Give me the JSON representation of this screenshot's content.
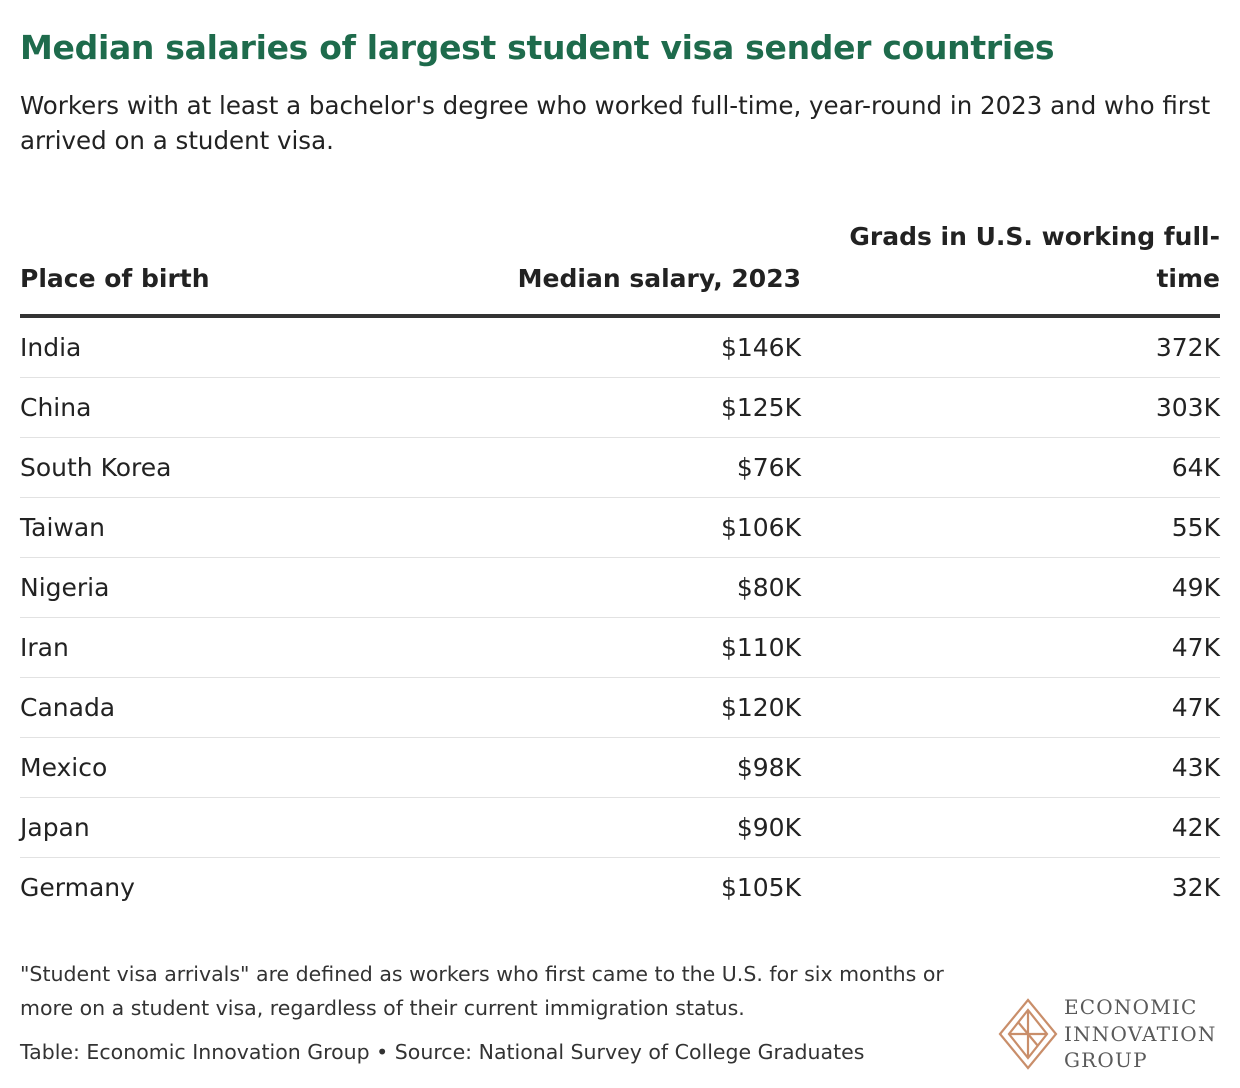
{
  "title": "Median salaries of largest student visa sender countries",
  "subtitle": "Workers with at least a bachelor's degree who worked full-time, year-round in 2023 and who first arrived on a student visa.",
  "table": {
    "headers": {
      "place": "Place of birth",
      "salary": "Median salary, 2023",
      "grads": "Grads in U.S. working full-time"
    },
    "rows": [
      {
        "place": "India",
        "salary": "$146K",
        "grads": "372K"
      },
      {
        "place": "China",
        "salary": "$125K",
        "grads": "303K"
      },
      {
        "place": "South Korea",
        "salary": "$76K",
        "grads": "64K"
      },
      {
        "place": "Taiwan",
        "salary": "$106K",
        "grads": "55K"
      },
      {
        "place": "Nigeria",
        "salary": "$80K",
        "grads": "49K"
      },
      {
        "place": "Iran",
        "salary": "$110K",
        "grads": "47K"
      },
      {
        "place": "Canada",
        "salary": "$120K",
        "grads": "47K"
      },
      {
        "place": "Mexico",
        "salary": "$98K",
        "grads": "43K"
      },
      {
        "place": "Japan",
        "salary": "$90K",
        "grads": "42K"
      },
      {
        "place": "Germany",
        "salary": "$105K",
        "grads": "32K"
      }
    ]
  },
  "chart_data": {
    "type": "table",
    "title": "Median salaries of largest student visa sender countries",
    "columns": [
      "Place of birth",
      "Median salary, 2023",
      "Grads in U.S. working full-time"
    ],
    "rows": [
      [
        "India",
        "$146K",
        "372K"
      ],
      [
        "China",
        "$125K",
        "303K"
      ],
      [
        "South Korea",
        "$76K",
        "64K"
      ],
      [
        "Taiwan",
        "$106K",
        "55K"
      ],
      [
        "Nigeria",
        "$80K",
        "49K"
      ],
      [
        "Iran",
        "$110K",
        "47K"
      ],
      [
        "Canada",
        "$120K",
        "47K"
      ],
      [
        "Mexico",
        "$98K",
        "43K"
      ],
      [
        "Japan",
        "$90K",
        "42K"
      ],
      [
        "Germany",
        "$105K",
        "32K"
      ]
    ]
  },
  "footer": {
    "note": "\"Student visa arrivals\" are defined as workers who first came to the U.S. for six months or more on a student visa, regardless of their current immigration status.",
    "source": "Table: Economic Innovation Group • Source: National Survey of College Graduates"
  },
  "logo": {
    "lines": [
      "ECONOMIC",
      "INNOVATION",
      "GROUP"
    ],
    "color": "#c98e6a"
  },
  "colors": {
    "title": "#1e6b4c",
    "text": "#222222",
    "rule": "#333333",
    "row_divider": "#e2e2e2"
  }
}
